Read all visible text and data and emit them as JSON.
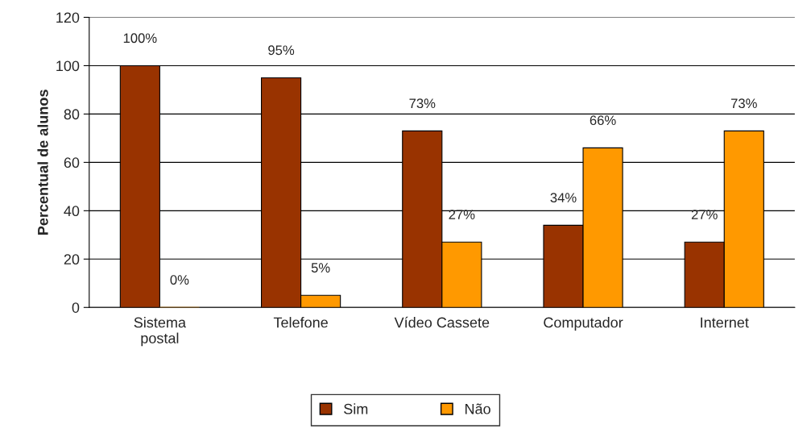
{
  "chart_data": {
    "type": "bar",
    "ylabel": "Percentual de alunos",
    "categories": [
      "Sistema\npostal",
      "Telefone",
      "Vídeo Cassete",
      "Computador",
      "Internet"
    ],
    "series": [
      {
        "name": "Sim",
        "color": "#993300",
        "values": [
          100,
          95,
          73,
          34,
          27
        ],
        "value_labels": [
          "100%",
          "95%",
          "73%",
          "34%",
          "27%"
        ]
      },
      {
        "name": "Não",
        "color": "#ff9900",
        "values": [
          0,
          5,
          27,
          66,
          73
        ],
        "value_labels": [
          "0%",
          "5%",
          "27%",
          "66%",
          "73%"
        ]
      }
    ],
    "ylim": [
      0,
      120
    ],
    "yticks": [
      0,
      20,
      40,
      60,
      80,
      100,
      120
    ],
    "grid": "y",
    "legend": "bottom"
  }
}
